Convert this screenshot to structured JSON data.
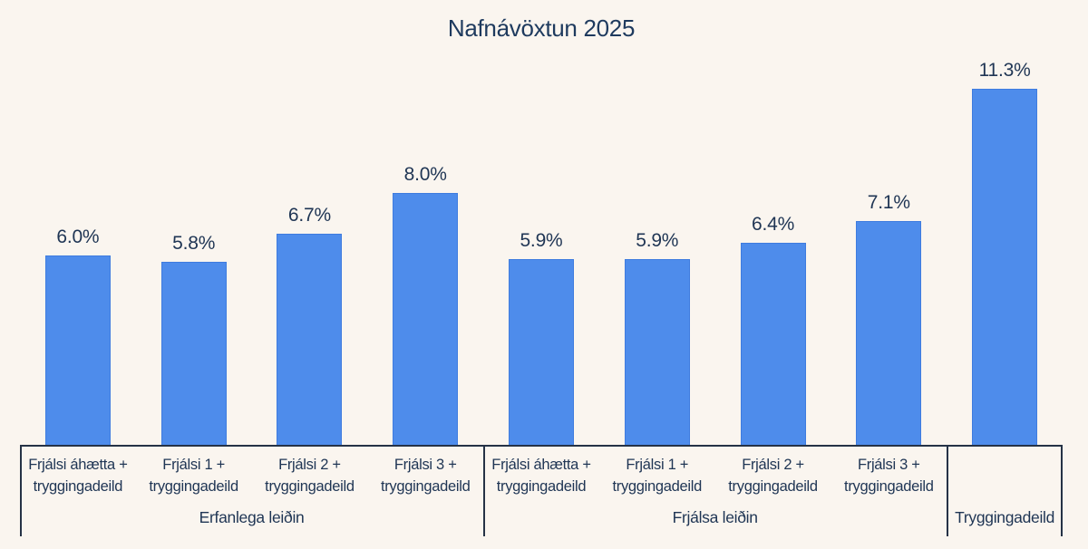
{
  "page": {
    "background_color": "#faf5ef"
  },
  "chart_data": {
    "type": "bar",
    "title": "Nafnávöxtun 2025",
    "unit": "%",
    "categories": [
      "Frjálsi áhætta +\ntryggingadeild",
      "Frjálsi 1 +\ntryggingadeild",
      "Frjálsi 2 +\ntryggingadeild",
      "Frjálsi 3 +\ntryggingadeild",
      "Frjálsi áhætta +\ntryggingadeild",
      "Frjálsi 1 +\ntryggingadeild",
      "Frjálsi 2 +\ntryggingadeild",
      "Frjálsi 3 +\ntryggingadeild",
      ""
    ],
    "values": [
      6.0,
      5.8,
      6.7,
      8.0,
      5.9,
      5.9,
      6.4,
      7.1,
      11.3
    ],
    "value_labels": [
      "6.0%",
      "5.8%",
      "6.7%",
      "8.0%",
      "5.9%",
      "5.9%",
      "6.4%",
      "7.1%",
      "11.3%"
    ],
    "groups": [
      {
        "label": "Erfanlega leiðin",
        "span": 4
      },
      {
        "label": "Frjálsa leiðin",
        "span": 4
      },
      {
        "label": "Tryggingadeild",
        "span": 1
      }
    ],
    "xlabel": "",
    "ylabel": "",
    "ylim": [
      0,
      14.1
    ],
    "y_axis_visible": false,
    "gridlines": false,
    "legend": "none",
    "bar_color": "#4e8ceb",
    "bar_border_color": "#3f7cdf",
    "text_color": "#1f3554",
    "title_color": "#1e3a5e",
    "axis_line_color": "#253246"
  }
}
